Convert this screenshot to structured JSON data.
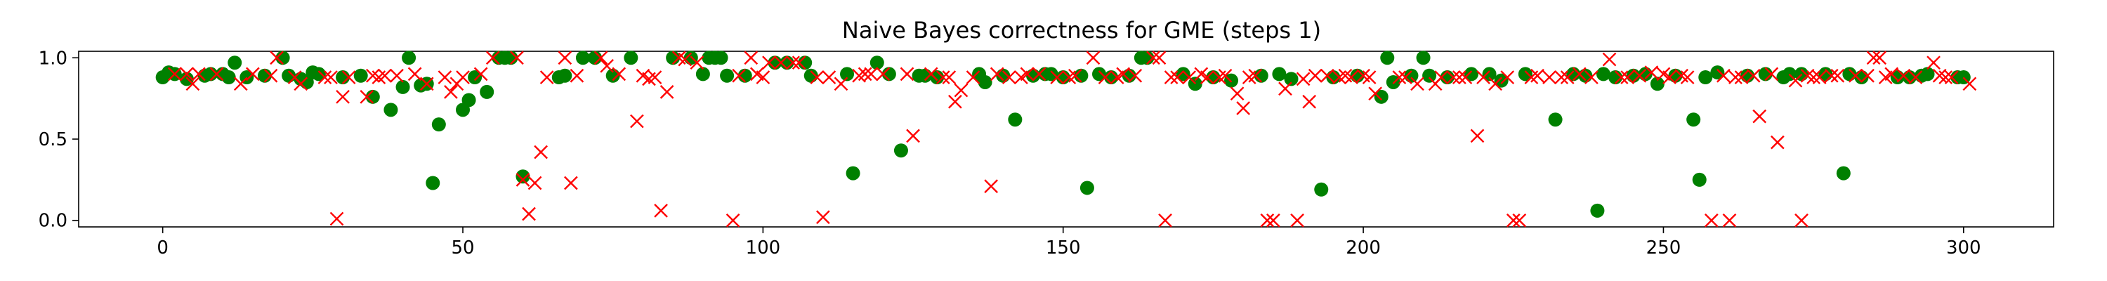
{
  "chart_data": {
    "type": "scatter",
    "title": "Naive Bayes correctness for GME (steps 1)",
    "xlabel": "",
    "ylabel": "",
    "xlim": [
      -14,
      315
    ],
    "ylim": [
      -0.04,
      1.04
    ],
    "xticks": [
      0,
      50,
      100,
      150,
      200,
      250,
      300
    ],
    "yticks": [
      0.0,
      0.5,
      1.0
    ],
    "ytick_labels": [
      "0.0",
      "0.5",
      "1.0"
    ],
    "grid": false,
    "legend": "none",
    "colors": {
      "circle_series": "#008000",
      "x_series": "#ff0000"
    },
    "series": [
      {
        "marker": "circle",
        "color": "#008000",
        "points": [
          [
            0,
            0.88
          ],
          [
            1,
            0.91
          ],
          [
            2,
            0.9
          ],
          [
            4,
            0.87
          ],
          [
            7,
            0.89
          ],
          [
            8,
            0.9
          ],
          [
            10,
            0.9
          ],
          [
            11,
            0.88
          ],
          [
            12,
            0.97
          ],
          [
            14,
            0.88
          ],
          [
            17,
            0.89
          ],
          [
            20,
            1.0
          ],
          [
            21,
            0.89
          ],
          [
            23,
            0.87
          ],
          [
            24,
            0.85
          ],
          [
            25,
            0.91
          ],
          [
            26,
            0.9
          ],
          [
            30,
            0.88
          ],
          [
            33,
            0.89
          ],
          [
            35,
            0.76
          ],
          [
            38,
            0.68
          ],
          [
            40,
            0.82
          ],
          [
            41,
            1.0
          ],
          [
            43,
            0.83
          ],
          [
            44,
            0.84
          ],
          [
            45,
            0.23
          ],
          [
            46,
            0.59
          ],
          [
            50,
            0.68
          ],
          [
            51,
            0.74
          ],
          [
            52,
            0.88
          ],
          [
            54,
            0.79
          ],
          [
            56,
            1.0
          ],
          [
            57,
            1.0
          ],
          [
            58,
            1.0
          ],
          [
            60,
            0.27
          ],
          [
            66,
            0.88
          ],
          [
            67,
            0.89
          ],
          [
            70,
            1.0
          ],
          [
            72,
            1.0
          ],
          [
            75,
            0.89
          ],
          [
            78,
            1.0
          ],
          [
            85,
            1.0
          ],
          [
            88,
            1.0
          ],
          [
            90,
            0.9
          ],
          [
            91,
            1.0
          ],
          [
            92,
            1.0
          ],
          [
            93,
            1.0
          ],
          [
            94,
            0.89
          ],
          [
            97,
            0.89
          ],
          [
            102,
            0.97
          ],
          [
            104,
            0.97
          ],
          [
            107,
            0.97
          ],
          [
            108,
            0.89
          ],
          [
            114,
            0.9
          ],
          [
            115,
            0.29
          ],
          [
            119,
            0.97
          ],
          [
            121,
            0.9
          ],
          [
            123,
            0.43
          ],
          [
            126,
            0.89
          ],
          [
            127,
            0.89
          ],
          [
            129,
            0.88
          ],
          [
            136,
            0.9
          ],
          [
            137,
            0.85
          ],
          [
            140,
            0.89
          ],
          [
            142,
            0.62
          ],
          [
            145,
            0.89
          ],
          [
            147,
            0.9
          ],
          [
            148,
            0.9
          ],
          [
            150,
            0.88
          ],
          [
            153,
            0.89
          ],
          [
            154,
            0.2
          ],
          [
            156,
            0.9
          ],
          [
            158,
            0.88
          ],
          [
            161,
            0.89
          ],
          [
            163,
            1.0
          ],
          [
            164,
            1.0
          ],
          [
            170,
            0.9
          ],
          [
            172,
            0.84
          ],
          [
            175,
            0.88
          ],
          [
            178,
            0.86
          ],
          [
            183,
            0.89
          ],
          [
            186,
            0.9
          ],
          [
            188,
            0.87
          ],
          [
            193,
            0.19
          ],
          [
            195,
            0.88
          ],
          [
            199,
            0.89
          ],
          [
            203,
            0.76
          ],
          [
            204,
            1.0
          ],
          [
            205,
            0.85
          ],
          [
            208,
            0.89
          ],
          [
            210,
            1.0
          ],
          [
            211,
            0.89
          ],
          [
            214,
            0.88
          ],
          [
            218,
            0.9
          ],
          [
            221,
            0.9
          ],
          [
            223,
            0.86
          ],
          [
            227,
            0.9
          ],
          [
            232,
            0.62
          ],
          [
            235,
            0.9
          ],
          [
            237,
            0.89
          ],
          [
            239,
            0.06
          ],
          [
            240,
            0.9
          ],
          [
            242,
            0.88
          ],
          [
            245,
            0.89
          ],
          [
            247,
            0.9
          ],
          [
            249,
            0.84
          ],
          [
            252,
            0.89
          ],
          [
            255,
            0.62
          ],
          [
            256,
            0.25
          ],
          [
            257,
            0.88
          ],
          [
            259,
            0.91
          ],
          [
            264,
            0.89
          ],
          [
            267,
            0.9
          ],
          [
            270,
            0.88
          ],
          [
            271,
            0.9
          ],
          [
            273,
            0.9
          ],
          [
            277,
            0.9
          ],
          [
            280,
            0.29
          ],
          [
            281,
            0.9
          ],
          [
            283,
            0.88
          ],
          [
            289,
            0.88
          ],
          [
            291,
            0.88
          ],
          [
            293,
            0.89
          ],
          [
            294,
            0.9
          ],
          [
            299,
            0.88
          ],
          [
            300,
            0.88
          ]
        ]
      },
      {
        "marker": "x",
        "color": "#ff0000",
        "points": [
          [
            2,
            0.9
          ],
          [
            4,
            0.9
          ],
          [
            5,
            0.84
          ],
          [
            6,
            0.9
          ],
          [
            9,
            0.9
          ],
          [
            13,
            0.84
          ],
          [
            15,
            0.9
          ],
          [
            18,
            0.89
          ],
          [
            19,
            1.0
          ],
          [
            22,
            0.88
          ],
          [
            23,
            0.84
          ],
          [
            27,
            0.88
          ],
          [
            28,
            0.88
          ],
          [
            29,
            0.01
          ],
          [
            30,
            0.76
          ],
          [
            31,
            0.88
          ],
          [
            34,
            0.76
          ],
          [
            35,
            0.89
          ],
          [
            36,
            0.88
          ],
          [
            37,
            0.89
          ],
          [
            39,
            0.89
          ],
          [
            42,
            0.9
          ],
          [
            44,
            0.84
          ],
          [
            47,
            0.88
          ],
          [
            48,
            0.79
          ],
          [
            49,
            0.84
          ],
          [
            50,
            0.88
          ],
          [
            53,
            0.9
          ],
          [
            55,
            1.0
          ],
          [
            59,
            1.0
          ],
          [
            60,
            0.25
          ],
          [
            61,
            0.04
          ],
          [
            62,
            0.23
          ],
          [
            63,
            0.42
          ],
          [
            64,
            0.88
          ],
          [
            67,
            1.0
          ],
          [
            68,
            0.23
          ],
          [
            69,
            0.89
          ],
          [
            73,
            1.0
          ],
          [
            74,
            0.95
          ],
          [
            76,
            0.9
          ],
          [
            79,
            0.61
          ],
          [
            80,
            0.89
          ],
          [
            81,
            0.87
          ],
          [
            82,
            0.88
          ],
          [
            83,
            0.06
          ],
          [
            84,
            0.79
          ],
          [
            86,
            1.0
          ],
          [
            87,
            0.99
          ],
          [
            89,
            0.97
          ],
          [
            95,
            0.0
          ],
          [
            96,
            0.89
          ],
          [
            98,
            1.0
          ],
          [
            99,
            0.9
          ],
          [
            100,
            0.88
          ],
          [
            101,
            0.97
          ],
          [
            103,
            0.97
          ],
          [
            105,
            0.97
          ],
          [
            106,
            0.97
          ],
          [
            109,
            0.88
          ],
          [
            110,
            0.02
          ],
          [
            111,
            0.88
          ],
          [
            113,
            0.84
          ],
          [
            116,
            0.89
          ],
          [
            117,
            0.9
          ],
          [
            118,
            0.9
          ],
          [
            120,
            0.9
          ],
          [
            124,
            0.9
          ],
          [
            125,
            0.52
          ],
          [
            128,
            0.9
          ],
          [
            130,
            0.88
          ],
          [
            131,
            0.88
          ],
          [
            132,
            0.73
          ],
          [
            133,
            0.8
          ],
          [
            135,
            0.88
          ],
          [
            138,
            0.21
          ],
          [
            139,
            0.9
          ],
          [
            141,
            0.88
          ],
          [
            143,
            0.88
          ],
          [
            144,
            0.9
          ],
          [
            146,
            0.9
          ],
          [
            149,
            0.88
          ],
          [
            151,
            0.88
          ],
          [
            152,
            0.89
          ],
          [
            155,
            1.0
          ],
          [
            157,
            0.88
          ],
          [
            159,
            0.88
          ],
          [
            160,
            0.9
          ],
          [
            162,
            0.89
          ],
          [
            165,
            1.0
          ],
          [
            166,
            1.0
          ],
          [
            167,
            0.0
          ],
          [
            168,
            0.88
          ],
          [
            169,
            0.88
          ],
          [
            171,
            0.88
          ],
          [
            173,
            0.9
          ],
          [
            174,
            0.88
          ],
          [
            176,
            0.88
          ],
          [
            177,
            0.89
          ],
          [
            179,
            0.78
          ],
          [
            180,
            0.69
          ],
          [
            181,
            0.88
          ],
          [
            182,
            0.89
          ],
          [
            184,
            0.0
          ],
          [
            185,
            0.0
          ],
          [
            187,
            0.81
          ],
          [
            189,
            0.0
          ],
          [
            190,
            0.87
          ],
          [
            191,
            0.73
          ],
          [
            192,
            0.89
          ],
          [
            194,
            0.89
          ],
          [
            196,
            0.88
          ],
          [
            197,
            0.89
          ],
          [
            198,
            0.88
          ],
          [
            200,
            0.89
          ],
          [
            201,
            0.88
          ],
          [
            202,
            0.78
          ],
          [
            206,
            0.88
          ],
          [
            207,
            0.88
          ],
          [
            209,
            0.84
          ],
          [
            212,
            0.84
          ],
          [
            213,
            0.88
          ],
          [
            215,
            0.88
          ],
          [
            216,
            0.88
          ],
          [
            217,
            0.88
          ],
          [
            219,
            0.52
          ],
          [
            220,
            0.88
          ],
          [
            222,
            0.84
          ],
          [
            224,
            0.88
          ],
          [
            225,
            0.0
          ],
          [
            226,
            0.0
          ],
          [
            228,
            0.88
          ],
          [
            229,
            0.89
          ],
          [
            231,
            0.88
          ],
          [
            233,
            0.88
          ],
          [
            234,
            0.88
          ],
          [
            236,
            0.9
          ],
          [
            238,
            0.88
          ],
          [
            241,
            0.99
          ],
          [
            243,
            0.88
          ],
          [
            244,
            0.88
          ],
          [
            246,
            0.89
          ],
          [
            248,
            0.91
          ],
          [
            250,
            0.9
          ],
          [
            251,
            0.88
          ],
          [
            253,
            0.89
          ],
          [
            254,
            0.88
          ],
          [
            258,
            0.0
          ],
          [
            260,
            0.89
          ],
          [
            261,
            0.0
          ],
          [
            262,
            0.88
          ],
          [
            263,
            0.88
          ],
          [
            265,
            0.89
          ],
          [
            266,
            0.64
          ],
          [
            268,
            0.9
          ],
          [
            269,
            0.48
          ],
          [
            272,
            0.86
          ],
          [
            273,
            0.0
          ],
          [
            274,
            0.89
          ],
          [
            275,
            0.88
          ],
          [
            276,
            0.88
          ],
          [
            278,
            0.89
          ],
          [
            279,
            0.89
          ],
          [
            282,
            0.89
          ],
          [
            284,
            0.89
          ],
          [
            285,
            1.0
          ],
          [
            286,
            1.0
          ],
          [
            287,
            0.88
          ],
          [
            288,
            0.9
          ],
          [
            290,
            0.89
          ],
          [
            292,
            0.88
          ],
          [
            295,
            0.97
          ],
          [
            296,
            0.89
          ],
          [
            297,
            0.88
          ],
          [
            298,
            0.88
          ],
          [
            301,
            0.84
          ]
        ]
      }
    ]
  }
}
